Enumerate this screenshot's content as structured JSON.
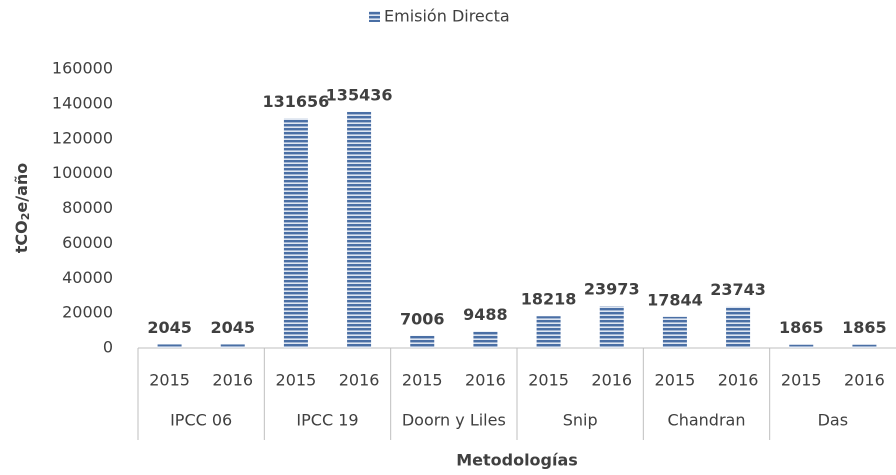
{
  "chart_data": {
    "type": "bar",
    "legend": "Emisión Directa",
    "ylabel": [
      "tCO",
      "2",
      "e/año"
    ],
    "xlabel": "Metodologías",
    "categories": [
      "2015",
      "2016",
      "2015",
      "2016",
      "2015",
      "2016",
      "2015",
      "2016",
      "2015",
      "2016",
      "2015",
      "2016"
    ],
    "groups": [
      "IPCC 06",
      "IPCC 19",
      "Doorn y Liles",
      "Snip",
      "Chandran",
      "Das"
    ],
    "values": [
      2045,
      2045,
      131656,
      135436,
      7006,
      9488,
      18218,
      23973,
      17844,
      23743,
      1865,
      1865
    ],
    "color": "#4a6fa5",
    "ylim": [
      0,
      160000
    ],
    "yticks": [
      0,
      20000,
      40000,
      60000,
      80000,
      100000,
      120000,
      140000,
      160000
    ]
  }
}
